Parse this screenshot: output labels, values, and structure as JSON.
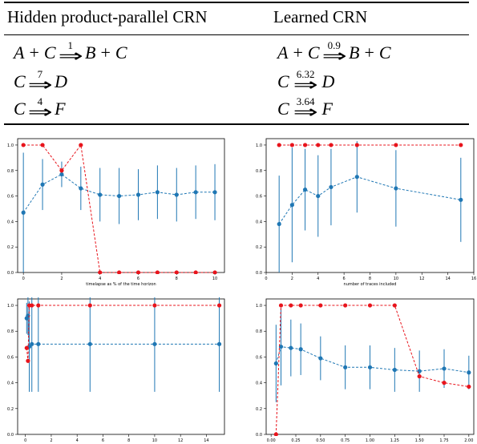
{
  "table": {
    "header_left": "Hidden product-parallel CRN",
    "header_right": "Learned CRN",
    "left_reactions": [
      {
        "lhs": [
          "A",
          "C"
        ],
        "rate": "1",
        "rhs": [
          "B",
          "C"
        ]
      },
      {
        "lhs": [
          "C"
        ],
        "rate": "7",
        "rhs": [
          "D"
        ]
      },
      {
        "lhs": [
          "C"
        ],
        "rate": "4",
        "rhs": [
          "F"
        ]
      }
    ],
    "right_reactions": [
      {
        "lhs": [
          "A",
          "C"
        ],
        "rate": "0.9",
        "rhs": [
          "B",
          "C"
        ]
      },
      {
        "lhs": [
          "C"
        ],
        "rate": "6.32",
        "rhs": [
          "D"
        ]
      },
      {
        "lhs": [
          "C"
        ],
        "rate": "3.64",
        "rhs": [
          "F"
        ]
      }
    ]
  },
  "colors": {
    "blue": "#1f77b4",
    "red": "#e8141c"
  },
  "chart_data": [
    {
      "type": "line",
      "xlabel": "timelapse as % of the time horizon",
      "xlim": [
        -0.3,
        10.5
      ],
      "ylim": [
        0.0,
        1.05
      ],
      "xticks": [
        "0",
        "2",
        "4",
        "6",
        "8",
        "10"
      ],
      "yticks": [
        "0.0",
        "0.2",
        "0.4",
        "0.6",
        "0.8",
        "1.0"
      ],
      "x": [
        0,
        1,
        2,
        3,
        4,
        5,
        6,
        7,
        8,
        9,
        10
      ],
      "series": [
        {
          "color": "blue",
          "values": [
            0.47,
            0.69,
            0.77,
            0.66,
            0.61,
            0.6,
            0.61,
            0.63,
            0.61,
            0.63,
            0.63
          ],
          "err": [
            0.47,
            0.2,
            0.1,
            0.17,
            0.21,
            0.22,
            0.2,
            0.21,
            0.21,
            0.21,
            0.22
          ]
        },
        {
          "color": "red",
          "values": [
            1.0,
            1.0,
            0.8,
            1.0,
            0.0,
            0.0,
            0.0,
            0.0,
            0.0,
            0.0,
            0.0
          ]
        }
      ]
    },
    {
      "type": "line",
      "xlabel": "number of traces included",
      "xlim": [
        0,
        16
      ],
      "ylim": [
        0.0,
        1.05
      ],
      "xticks": [
        "0",
        "2",
        "4",
        "6",
        "8",
        "10",
        "12",
        "14",
        "16"
      ],
      "yticks": [
        "0.0",
        "0.2",
        "0.4",
        "0.6",
        "0.8",
        "1.0"
      ],
      "x": [
        1,
        2,
        3,
        4,
        5,
        7,
        10,
        15
      ],
      "series": [
        {
          "color": "blue",
          "values": [
            0.38,
            0.53,
            0.65,
            0.6,
            0.67,
            0.75,
            0.66,
            0.57
          ],
          "err": [
            0.38,
            0.45,
            0.32,
            0.32,
            0.3,
            0.28,
            0.3,
            0.33
          ]
        },
        {
          "color": "red",
          "values": [
            1.0,
            1.0,
            1.0,
            1.0,
            1.0,
            1.0,
            1.0,
            1.0
          ]
        }
      ]
    },
    {
      "type": "line",
      "xlabel": "",
      "xlim": [
        -0.6,
        15.4
      ],
      "ylim": [
        0.0,
        1.05
      ],
      "xticks": [
        "0",
        "2",
        "4",
        "6",
        "8",
        "10",
        "12",
        "14"
      ],
      "yticks": [
        "0.0",
        "0.2",
        "0.4",
        "0.6",
        "0.8",
        "1.0"
      ],
      "x": [
        0.1,
        0.2,
        0.3,
        0.5,
        1,
        5,
        10,
        15
      ],
      "series": [
        {
          "color": "blue",
          "values": [
            0.9,
            0.92,
            0.68,
            0.7,
            0.7,
            0.7,
            0.7,
            0.7
          ],
          "err": [
            0.12,
            0.15,
            0.35,
            0.37,
            0.37,
            0.37,
            0.37,
            0.37
          ]
        },
        {
          "color": "red",
          "values": [
            0.67,
            0.57,
            1.0,
            1.0,
            1.0,
            1.0,
            1.0,
            1.0
          ]
        }
      ]
    },
    {
      "type": "line",
      "xlabel": "",
      "xlim": [
        -0.05,
        2.05
      ],
      "ylim": [
        0.0,
        1.05
      ],
      "xticks": [
        "0.00",
        "0.25",
        "0.50",
        "0.75",
        "1.00",
        "1.25",
        "1.50",
        "1.75",
        "2.00"
      ],
      "yticks": [
        "0.0",
        "0.2",
        "0.4",
        "0.6",
        "0.8",
        "1.0"
      ],
      "x": [
        0.05,
        0.1,
        0.2,
        0.3,
        0.5,
        0.75,
        1.0,
        1.25,
        1.5,
        1.75,
        2.0
      ],
      "series": [
        {
          "color": "blue",
          "values": [
            0.55,
            0.68,
            0.67,
            0.66,
            0.59,
            0.52,
            0.52,
            0.5,
            0.49,
            0.51,
            0.48
          ],
          "err": [
            0.3,
            0.3,
            0.22,
            0.2,
            0.17,
            0.17,
            0.17,
            0.17,
            0.16,
            0.15,
            0.13
          ]
        },
        {
          "color": "red",
          "values": [
            0.0,
            1.0,
            1.0,
            1.0,
            1.0,
            1.0,
            1.0,
            1.0,
            0.45,
            0.4,
            0.37
          ]
        }
      ]
    }
  ]
}
